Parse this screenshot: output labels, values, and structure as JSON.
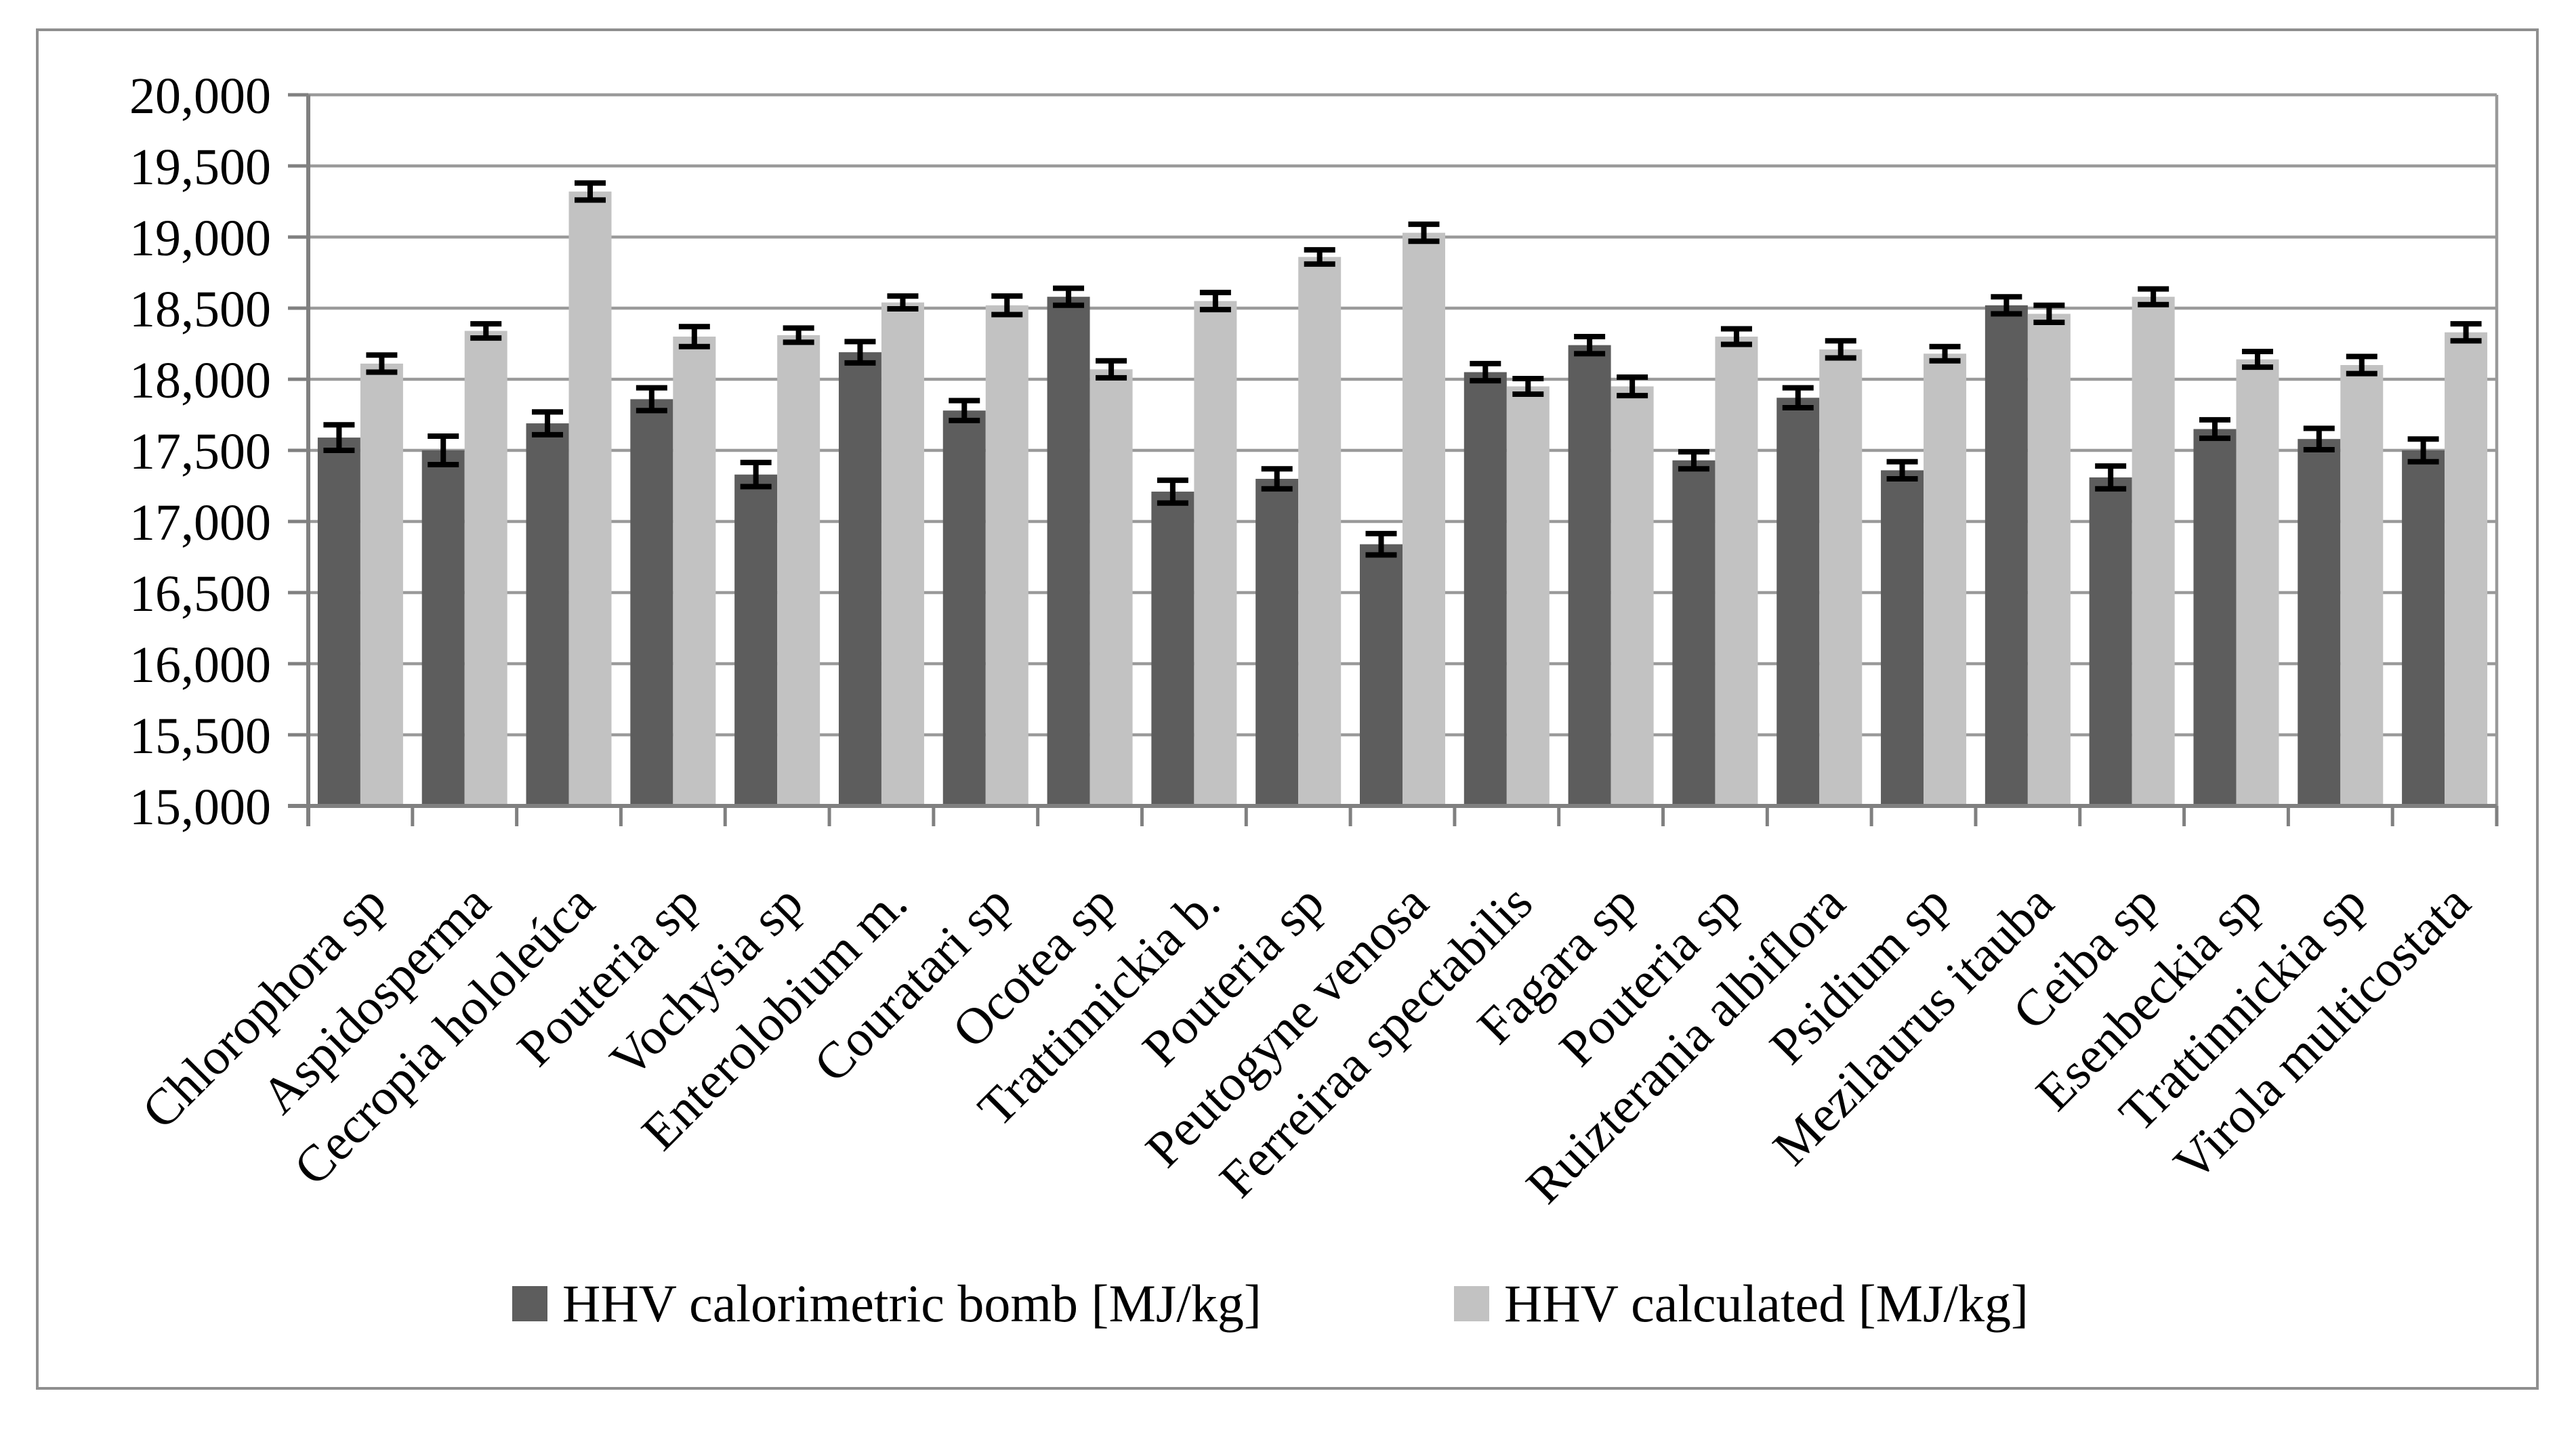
{
  "figure": {
    "background": "#ffffff",
    "border_color": "#8f8f8f",
    "gridline_color": "#9a9a9a",
    "axis_color": "#808080",
    "error_bar_color": "#000000"
  },
  "chart_data": {
    "type": "bar",
    "title": "",
    "xlabel": "",
    "ylabel": "",
    "grid": true,
    "error_bars": true,
    "legend_position": "bottom",
    "ylim": [
      15000,
      20000
    ],
    "ytick_step": 500,
    "ytick_labels": [
      "15,000",
      "15,500",
      "16,000",
      "16,500",
      "17,000",
      "17,500",
      "18,000",
      "18,500",
      "19,000",
      "19,500",
      "20,000"
    ],
    "categories": [
      "Chlorophora sp",
      "Aspidosperma",
      "Cecropia hololeúca",
      "Pouteria sp",
      "Vochysia sp",
      "Enterolobium m.",
      "Couratari sp",
      "Ocotea sp",
      "Trattinnickia b.",
      "Pouteria sp",
      "Peutogyne venosa",
      "Ferreiraa spectabilis",
      "Fagara sp",
      "Pouteria sp",
      "Ruizterania albiflora",
      "Psidium sp",
      "Mezilaurus itauba",
      "Ceiba sp",
      "Esenbeckia sp",
      "Trattinnickia sp",
      "Virola multicostata"
    ],
    "series": [
      {
        "name": "HHV calorimetric bomb [MJ/kg]",
        "color": "#5d5d5d",
        "values": [
          17590,
          17500,
          17690,
          17860,
          17330,
          18190,
          17780,
          18580,
          17210,
          17300,
          16840,
          18050,
          18240,
          17430,
          17870,
          17360,
          18520,
          17310,
          17650,
          17580,
          17500
        ],
        "errors": [
          90,
          100,
          80,
          80,
          85,
          75,
          70,
          60,
          80,
          70,
          75,
          60,
          60,
          60,
          70,
          60,
          60,
          80,
          65,
          75,
          80
        ]
      },
      {
        "name": "HHV calculated [MJ/kg]",
        "color": "#c2c2c2",
        "values": [
          18110,
          18340,
          19320,
          18300,
          18310,
          18540,
          18520,
          18070,
          18550,
          18860,
          19030,
          17950,
          17950,
          18300,
          18210,
          18180,
          18460,
          18580,
          18140,
          18100,
          18330
        ],
        "errors": [
          60,
          50,
          60,
          70,
          50,
          45,
          65,
          60,
          60,
          50,
          60,
          55,
          65,
          55,
          60,
          50,
          60,
          55,
          55,
          60,
          60
        ]
      }
    ]
  }
}
